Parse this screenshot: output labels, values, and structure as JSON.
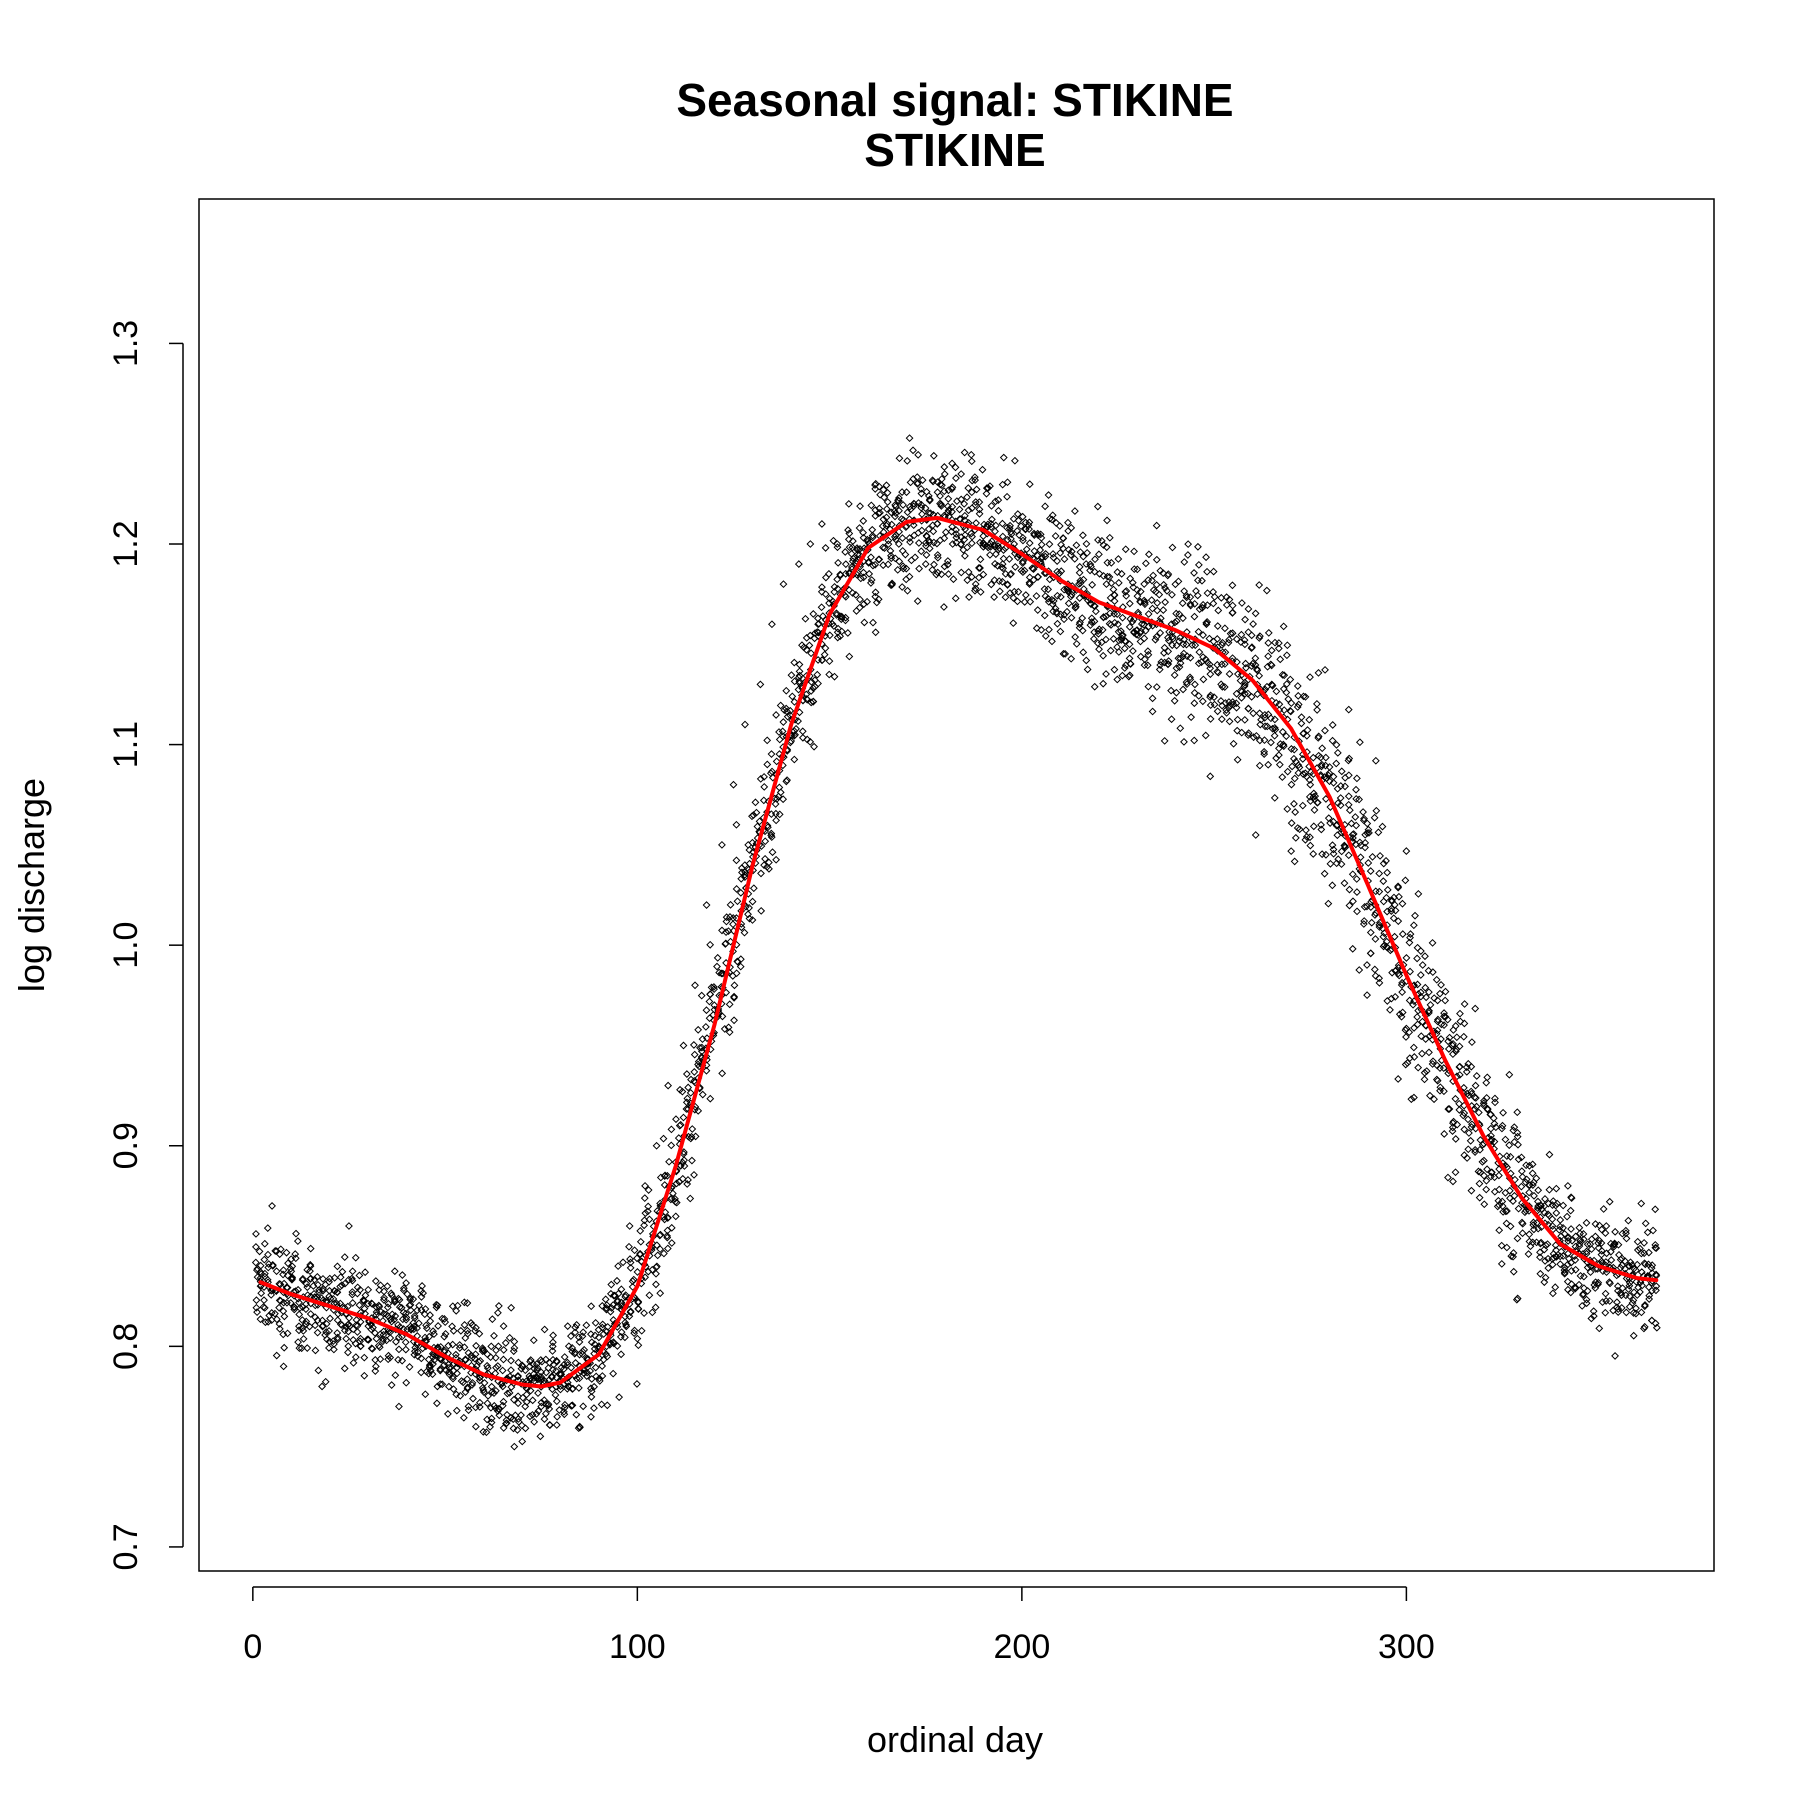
{
  "chart_data": {
    "type": "scatter",
    "title": "Seasonal signal: STIKINE",
    "subtitle": "STIKINE",
    "xlabel": "ordinal day",
    "ylabel": "log discharge",
    "xlim": [
      -14,
      380
    ],
    "ylim": [
      0.688,
      1.372
    ],
    "xticks": [
      0,
      100,
      200,
      300
    ],
    "yticks": [
      0.7,
      0.8,
      0.9,
      1.0,
      1.1,
      1.2,
      1.3
    ],
    "ytick_labels": [
      "0.7",
      "0.8",
      "0.9",
      "1.0",
      "1.1",
      "1.2",
      "1.3"
    ],
    "grid": false,
    "colors": {
      "points": "#000000",
      "smooth": "#ff0000"
    },
    "series": [
      {
        "kind": "points",
        "marker": "open-diamond",
        "description_of_distribution": "daily observations for 1 to 365, roughly 15 per day",
        "x": [
          2,
          5,
          8,
          12,
          15,
          18,
          22,
          25,
          28,
          32,
          35,
          38,
          42,
          45,
          48,
          52,
          55,
          58,
          62,
          65,
          68,
          72,
          75,
          78,
          82,
          85,
          88,
          92,
          95,
          98,
          102,
          105,
          108,
          112,
          115,
          118,
          122,
          125,
          128,
          132,
          135,
          138,
          142,
          145,
          148,
          152,
          155,
          158,
          162,
          165,
          168,
          172,
          175,
          178,
          182,
          185,
          188,
          192,
          195,
          198,
          202,
          205,
          208,
          212,
          215,
          218,
          222,
          225,
          228,
          232,
          235,
          238,
          242,
          245,
          248,
          252,
          255,
          258,
          262,
          265,
          268,
          272,
          275,
          278,
          282,
          285,
          288,
          292,
          295,
          298,
          302,
          305,
          308,
          312,
          315,
          318,
          322,
          325,
          328,
          332,
          335,
          338,
          342,
          345,
          348,
          352,
          355,
          358,
          362,
          365
        ],
        "y": [
          0.83,
          0.87,
          0.79,
          0.81,
          0.84,
          0.78,
          0.82,
          0.86,
          0.8,
          0.79,
          0.83,
          0.77,
          0.81,
          0.8,
          0.78,
          0.82,
          0.79,
          0.76,
          0.8,
          0.78,
          0.75,
          0.79,
          0.77,
          0.8,
          0.78,
          0.76,
          0.82,
          0.8,
          0.84,
          0.86,
          0.88,
          0.9,
          0.93,
          0.95,
          0.98,
          1.02,
          1.05,
          1.08,
          1.11,
          1.13,
          1.16,
          1.18,
          1.19,
          1.2,
          1.21,
          1.2,
          1.22,
          1.19,
          1.23,
          1.21,
          1.2,
          1.22,
          1.19,
          1.21,
          1.2,
          1.22,
          1.18,
          1.21,
          1.19,
          1.2,
          1.18,
          1.19,
          1.17,
          1.18,
          1.16,
          1.17,
          1.18,
          1.16,
          1.15,
          1.17,
          1.16,
          1.14,
          1.15,
          1.13,
          1.16,
          1.14,
          1.12,
          1.15,
          1.11,
          1.13,
          1.1,
          1.12,
          1.08,
          1.09,
          1.06,
          1.07,
          1.04,
          1.02,
          1.01,
          0.99,
          0.98,
          0.96,
          0.94,
          0.95,
          0.92,
          0.93,
          0.9,
          0.91,
          0.88,
          0.89,
          0.87,
          0.86,
          0.88,
          0.85,
          0.84,
          0.86,
          0.83,
          0.84,
          0.82,
          0.83
        ]
      },
      {
        "kind": "smooth",
        "x": [
          2,
          10,
          20,
          30,
          40,
          50,
          60,
          70,
          75,
          80,
          90,
          100,
          110,
          120,
          130,
          140,
          150,
          160,
          170,
          178,
          190,
          200,
          210,
          220,
          230,
          240,
          250,
          260,
          270,
          280,
          290,
          300,
          310,
          320,
          330,
          340,
          350,
          360,
          365
        ],
        "y": [
          0.832,
          0.826,
          0.82,
          0.814,
          0.806,
          0.795,
          0.786,
          0.781,
          0.78,
          0.782,
          0.796,
          0.83,
          0.89,
          0.96,
          1.04,
          1.11,
          1.165,
          1.198,
          1.211,
          1.213,
          1.207,
          1.195,
          1.182,
          1.171,
          1.164,
          1.157,
          1.148,
          1.132,
          1.108,
          1.074,
          1.03,
          0.985,
          0.943,
          0.905,
          0.874,
          0.851,
          0.84,
          0.834,
          0.833
        ]
      }
    ]
  }
}
